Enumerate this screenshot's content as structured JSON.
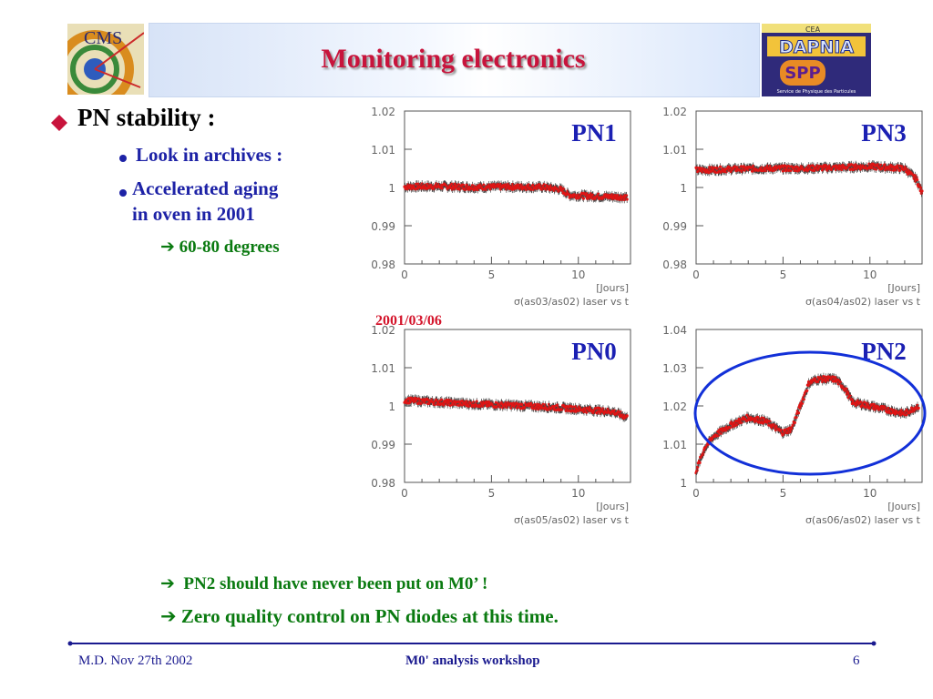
{
  "header": {
    "title": "Monitoring electronics",
    "left_logo_text": "CMS",
    "right_logo_text": "DAPNIA",
    "right_logo_sub": "Service de Physique des Particules",
    "right_logo_spp": "SPP"
  },
  "content": {
    "bullet": "PN stability :",
    "items": [
      "Look in archives :",
      "Accelerated aging",
      "in oven in 2001"
    ],
    "detail": "60-80 degrees",
    "date_note": "2001/03/06",
    "bottom_notes": [
      "PN2 should have never been put on M0’ !",
      "Zero quality control on PN diodes at this time."
    ]
  },
  "chart_data": [
    {
      "type": "scatter",
      "label": "PN1",
      "x_label": "σ(as03/as02) laser vs t",
      "x_unit": "[Jours]",
      "xlim": [
        0,
        13
      ],
      "ylim": [
        0.98,
        1.02
      ],
      "y_ticks": [
        "1.02",
        "1.01",
        "1",
        "0.99",
        "0.98"
      ],
      "x_ticks": [
        "0",
        "5",
        "10"
      ],
      "series": [
        {
          "x": [
            0,
            2,
            4,
            6,
            8,
            9,
            9.5,
            11,
            12.8
          ],
          "y": [
            1.0002,
            1.0003,
            1.0001,
            1.0002,
            1.0001,
            0.9995,
            0.998,
            0.9977,
            0.9975
          ]
        }
      ]
    },
    {
      "type": "scatter",
      "label": "PN3",
      "x_label": "σ(as04/as02) laser vs t",
      "x_unit": "[Jours]",
      "xlim": [
        0,
        13
      ],
      "ylim": [
        0.98,
        1.02
      ],
      "y_ticks": [
        "1.02",
        "1.01",
        "1",
        "0.99",
        "0.98"
      ],
      "x_ticks": [
        "0",
        "5",
        "10"
      ],
      "series": [
        {
          "x": [
            0,
            2,
            4,
            6,
            8,
            10,
            12,
            12.7,
            13
          ],
          "y": [
            1.0045,
            1.0048,
            1.005,
            1.005,
            1.0052,
            1.0055,
            1.005,
            1.002,
            0.9985
          ]
        }
      ]
    },
    {
      "type": "scatter",
      "label": "PN0",
      "x_label": "σ(as05/as02) laser vs t",
      "x_unit": "[Jours]",
      "xlim": [
        0,
        13
      ],
      "ylim": [
        0.98,
        1.02
      ],
      "y_ticks": [
        "1.02",
        "1.01",
        "1",
        "0.99",
        "0.98"
      ],
      "x_ticks": [
        "0",
        "5",
        "10"
      ],
      "series": [
        {
          "x": [
            0,
            2,
            4,
            6,
            8,
            10,
            12,
            12.8
          ],
          "y": [
            1.0015,
            1.001,
            1.0005,
            1.0002,
            0.9998,
            0.9992,
            0.9985,
            0.997
          ]
        }
      ]
    },
    {
      "type": "scatter",
      "label": "PN2",
      "x_label": "σ(as06/as02) laser vs t",
      "x_unit": "[Jours]",
      "xlim": [
        0,
        13
      ],
      "ylim": [
        1.0,
        1.04
      ],
      "y_ticks": [
        "1.04",
        "1.03",
        "1.02",
        "1.01",
        "1"
      ],
      "x_ticks": [
        "0",
        "5",
        "10"
      ],
      "series": [
        {
          "x": [
            0,
            0.5,
            1,
            2,
            3,
            4,
            5,
            5.5,
            6,
            6.5,
            7,
            8,
            8.5,
            9,
            10,
            11,
            12,
            12.8
          ],
          "y": [
            1.003,
            1.009,
            1.012,
            1.015,
            1.017,
            1.016,
            1.013,
            1.014,
            1.02,
            1.026,
            1.027,
            1.027,
            1.025,
            1.021,
            1.02,
            1.019,
            1.018,
            1.02
          ]
        }
      ]
    }
  ],
  "footer": {
    "left": "M.D. Nov 27th 2002",
    "center": "M0' analysis workshop",
    "page": "6"
  },
  "colors": {
    "title": "#c8143c",
    "sub": "#1d22a6",
    "green": "#0a7a10",
    "plot_label": "#1b20b3",
    "marker": "#e01515",
    "ellipse": "#1230d8"
  }
}
